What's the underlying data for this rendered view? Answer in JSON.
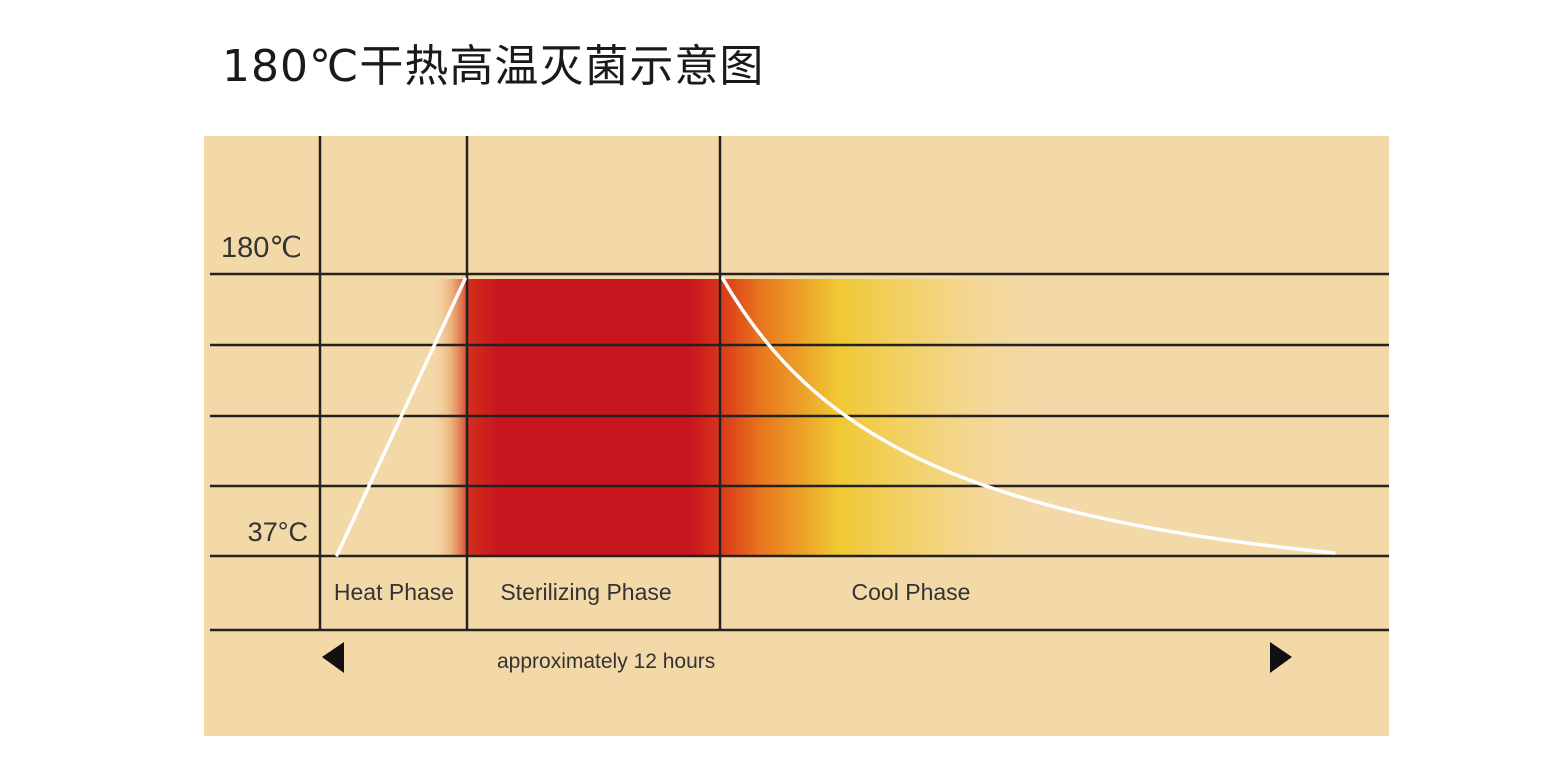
{
  "title": "180℃干热高温灭菌示意图",
  "temperatures": {
    "high": "180℃",
    "low": "37°C"
  },
  "phases": [
    "Heat Phase",
    "Sterilizing Phase",
    "Cool Phase"
  ],
  "duration": "approximately 12 hours",
  "colors": {
    "background": "#f4d9a8",
    "grid": "#222222",
    "sterilize": "#c8161e",
    "heat_gradient": "#e04a1a",
    "cool_gradient": "#f0c832",
    "curve": "#ffffff"
  },
  "arrows": [
    "arrow-left-icon",
    "arrow-right-icon"
  ]
}
